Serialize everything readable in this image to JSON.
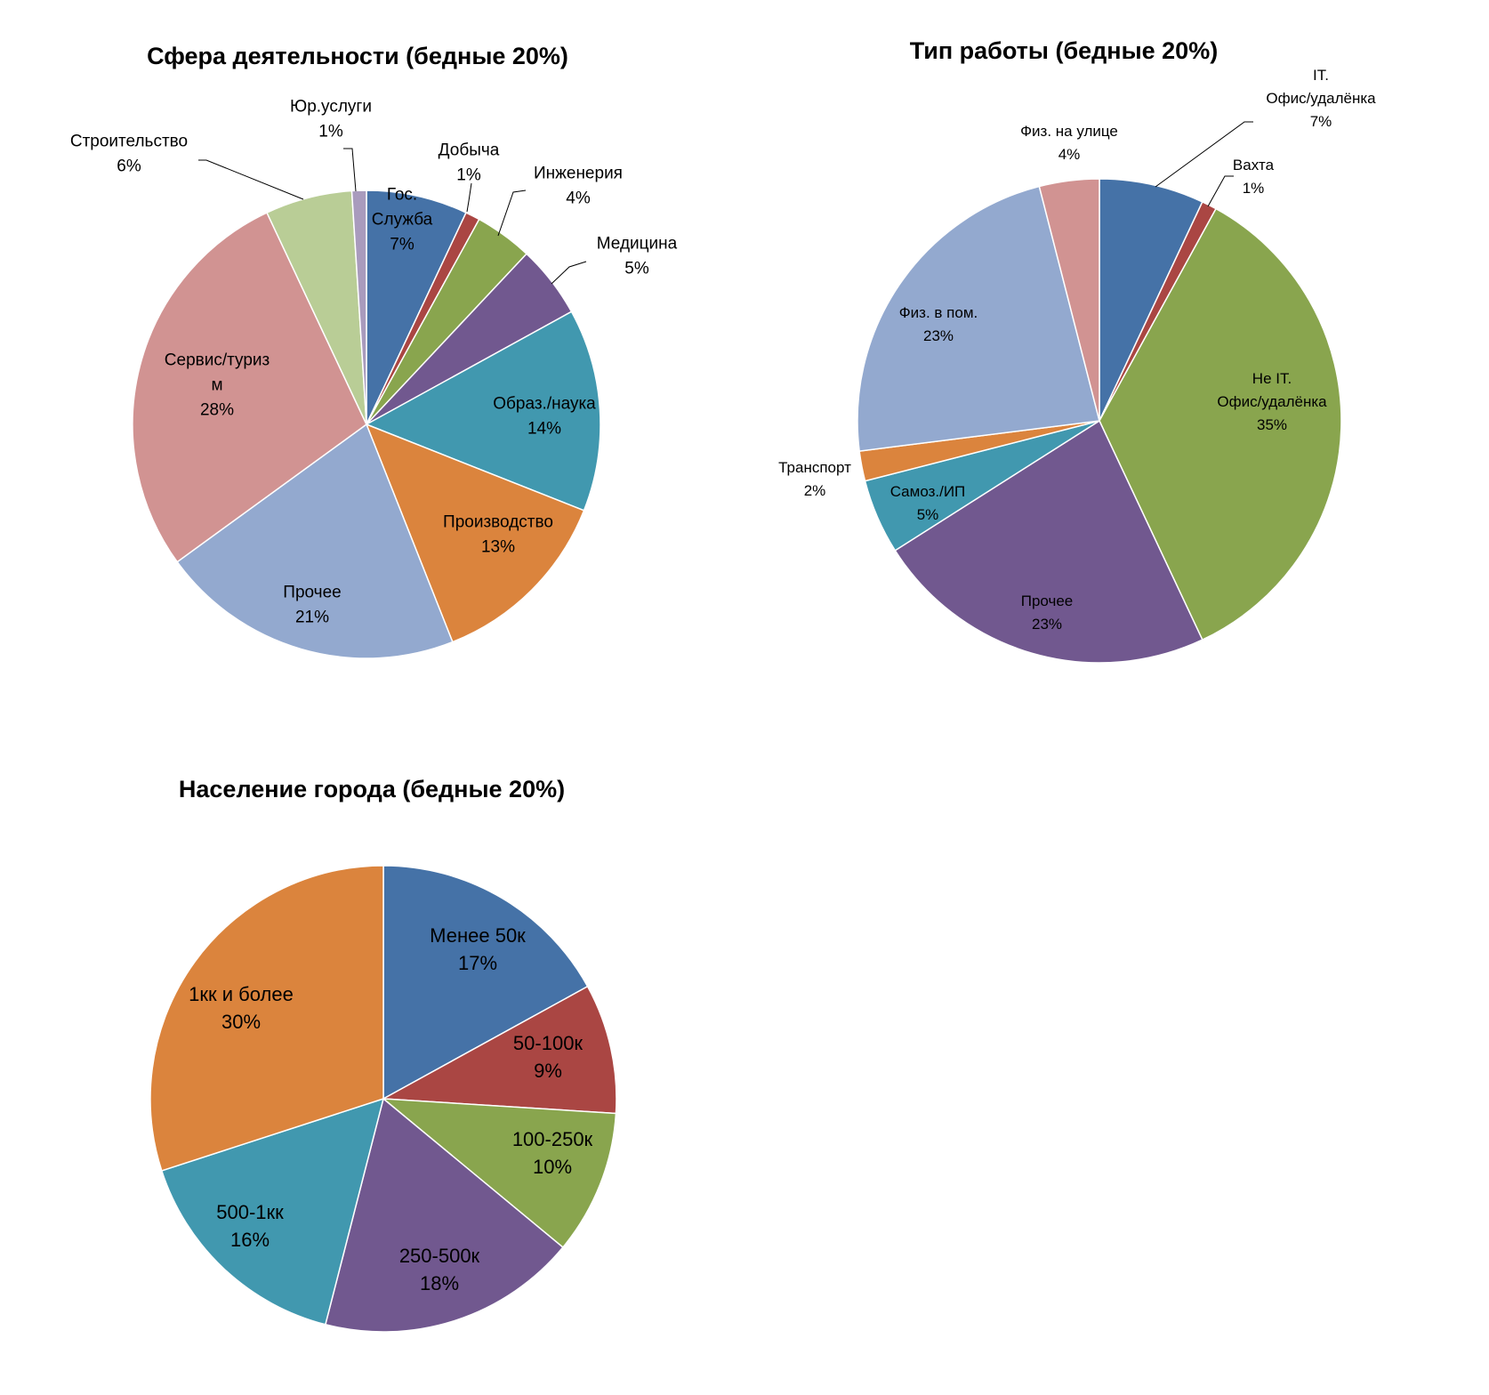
{
  "chart_data": [
    {
      "type": "pie",
      "title": "Сфера деятельности (бедные 20%)",
      "slices": [
        {
          "name": "Гос. Служба",
          "value": 7,
          "label_lines": [
            "Гос.",
            "Служба"
          ],
          "pct_label": "7%",
          "color": "#4572A7"
        },
        {
          "name": "Добыча",
          "value": 1,
          "label_lines": [
            "Добыча"
          ],
          "pct_label": "1%",
          "color": "#AA4643"
        },
        {
          "name": "Инженерия",
          "value": 4,
          "label_lines": [
            "Инженерия"
          ],
          "pct_label": "4%",
          "color": "#89A54E"
        },
        {
          "name": "Медицина",
          "value": 5,
          "label_lines": [
            "Медицина"
          ],
          "pct_label": "5%",
          "color": "#71588F"
        },
        {
          "name": "Образ./наука",
          "value": 14,
          "label_lines": [
            "Образ./наука"
          ],
          "pct_label": "14%",
          "color": "#4198AF"
        },
        {
          "name": "Производство",
          "value": 13,
          "label_lines": [
            "Производство"
          ],
          "pct_label": "13%",
          "color": "#DB843D"
        },
        {
          "name": "Прочее",
          "value": 21,
          "label_lines": [
            "Прочее"
          ],
          "pct_label": "21%",
          "color": "#93A9CF"
        },
        {
          "name": "Сервис/туризм",
          "value": 28,
          "label_lines": [
            "Сервис/туриз",
            "м"
          ],
          "pct_label": "28%",
          "color": "#D19392"
        },
        {
          "name": "Строительство",
          "value": 6,
          "label_lines": [
            "Строительство"
          ],
          "pct_label": "6%",
          "color": "#B9CD96"
        },
        {
          "name": "Юр.услуги",
          "value": 1,
          "label_lines": [
            "Юр.услуги"
          ],
          "pct_label": "1%",
          "color": "#A99BBD"
        }
      ]
    },
    {
      "type": "pie",
      "title": "Тип работы (бедные 20%)",
      "slices": [
        {
          "name": "IT. Офис/удалёнка",
          "value": 7,
          "label_lines": [
            "IT.",
            "Офис/удалёнка"
          ],
          "pct_label": "7%",
          "color": "#4572A7"
        },
        {
          "name": "Вахта",
          "value": 1,
          "label_lines": [
            "Вахта"
          ],
          "pct_label": "1%",
          "color": "#AA4643"
        },
        {
          "name": "Не IT. Офис/удалёнка",
          "value": 35,
          "label_lines": [
            "Не IT.",
            "Офис/удалёнка"
          ],
          "pct_label": "35%",
          "color": "#89A54E"
        },
        {
          "name": "Прочее",
          "value": 23,
          "label_lines": [
            "Прочее"
          ],
          "pct_label": "23%",
          "color": "#71588F"
        },
        {
          "name": "Самоз./ИП",
          "value": 5,
          "label_lines": [
            "Самоз./ИП"
          ],
          "pct_label": "5%",
          "color": "#4198AF"
        },
        {
          "name": "Транспорт",
          "value": 2,
          "label_lines": [
            "Транспорт"
          ],
          "pct_label": "2%",
          "color": "#DB843D"
        },
        {
          "name": "Физ. в пом.",
          "value": 23,
          "label_lines": [
            "Физ. в пом."
          ],
          "pct_label": "23%",
          "color": "#93A9CF"
        },
        {
          "name": "Физ. на улице",
          "value": 4,
          "label_lines": [
            "Физ. на улице"
          ],
          "pct_label": "4%",
          "color": "#D19392"
        }
      ]
    },
    {
      "type": "pie",
      "title": "Население города (бедные 20%)",
      "slices": [
        {
          "name": "Менее 50к",
          "value": 17,
          "label_lines": [
            "Менее 50к"
          ],
          "pct_label": "17%",
          "color": "#4572A7"
        },
        {
          "name": "50-100к",
          "value": 9,
          "label_lines": [
            "50-100к"
          ],
          "pct_label": "9%",
          "color": "#AA4643"
        },
        {
          "name": "100-250к",
          "value": 10,
          "label_lines": [
            "100-250к"
          ],
          "pct_label": "10%",
          "color": "#89A54E"
        },
        {
          "name": "250-500к",
          "value": 18,
          "label_lines": [
            "250-500к"
          ],
          "pct_label": "18%",
          "color": "#71588F"
        },
        {
          "name": "500-1кк",
          "value": 16,
          "label_lines": [
            "500-1кк"
          ],
          "pct_label": "16%",
          "color": "#4198AF"
        },
        {
          "name": "1кк и более",
          "value": 30,
          "label_lines": [
            "1кк и более"
          ],
          "pct_label": "30%",
          "color": "#DB843D"
        }
      ]
    }
  ]
}
